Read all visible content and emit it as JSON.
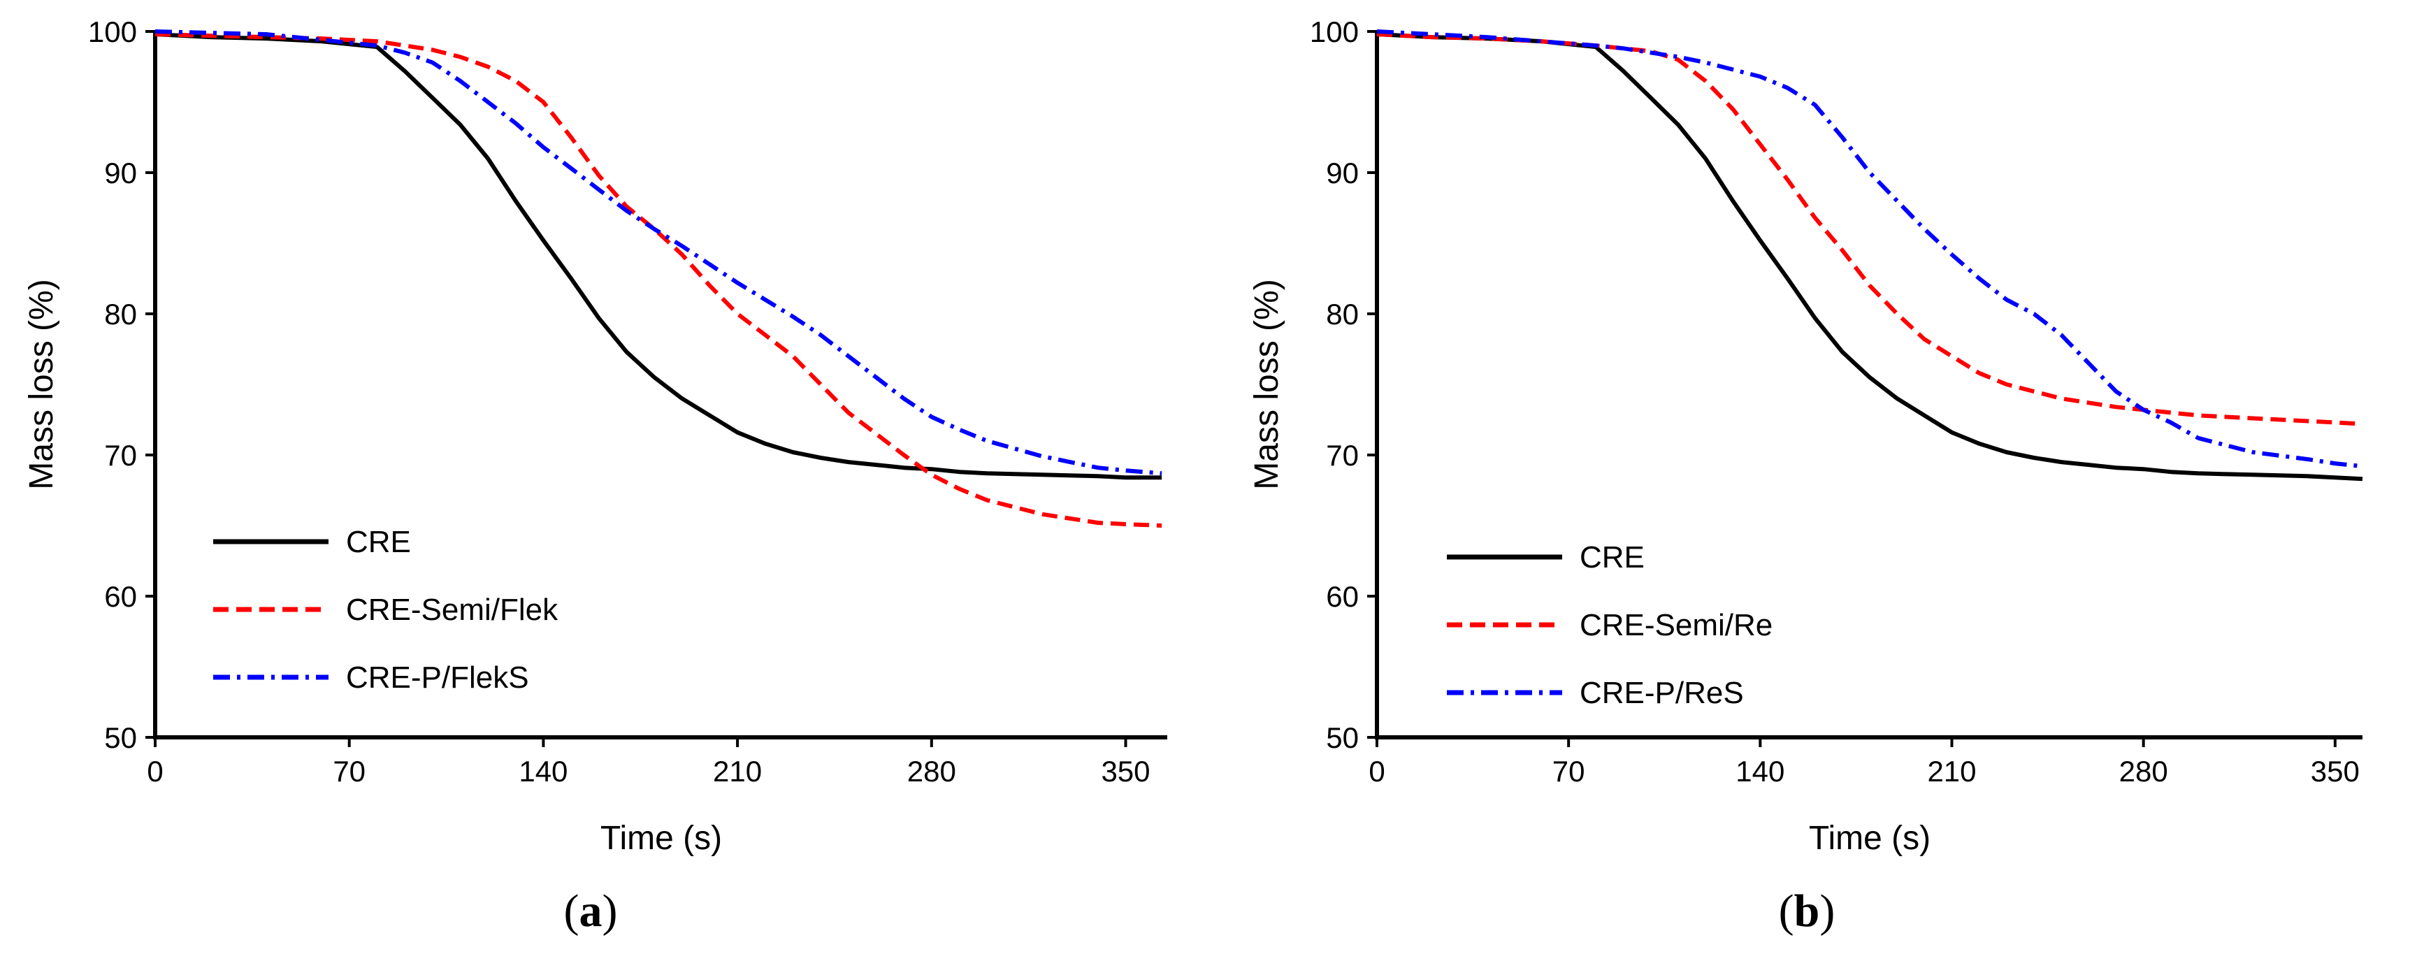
{
  "chart_data": [
    {
      "type": "line",
      "panel_label": "a",
      "xlabel": "Time (s)",
      "ylabel": "Mass loss (%)",
      "xlim": [
        0,
        365
      ],
      "ylim": [
        50,
        100
      ],
      "xticks": [
        0,
        70,
        140,
        210,
        280,
        350
      ],
      "yticks": [
        50,
        60,
        70,
        80,
        90,
        100
      ],
      "grid": false,
      "legend_position": "bottom-left",
      "series": [
        {
          "name": "CRE",
          "color": "#000000",
          "style": "solid",
          "x": [
            0,
            20,
            40,
            60,
            80,
            90,
            100,
            110,
            120,
            130,
            140,
            150,
            160,
            170,
            180,
            190,
            200,
            210,
            220,
            230,
            240,
            250,
            260,
            270,
            280,
            290,
            300,
            320,
            340,
            350,
            363
          ],
          "y": [
            99.8,
            99.6,
            99.5,
            99.3,
            98.9,
            97.2,
            95.3,
            93.4,
            91.0,
            88.0,
            85.2,
            82.5,
            79.7,
            77.3,
            75.5,
            74.0,
            72.8,
            71.6,
            70.8,
            70.2,
            69.8,
            69.5,
            69.3,
            69.1,
            69.0,
            68.8,
            68.7,
            68.6,
            68.5,
            68.4,
            68.4
          ]
        },
        {
          "name": "CRE-Semi/Flek",
          "color": "#ff0000",
          "style": "dashed",
          "x": [
            0,
            20,
            40,
            60,
            80,
            90,
            100,
            110,
            120,
            130,
            140,
            150,
            160,
            170,
            180,
            190,
            200,
            210,
            220,
            230,
            240,
            250,
            260,
            270,
            280,
            290,
            300,
            320,
            340,
            350,
            363
          ],
          "y": [
            99.8,
            99.7,
            99.6,
            99.5,
            99.3,
            99.0,
            98.7,
            98.2,
            97.5,
            96.5,
            95.0,
            92.5,
            89.8,
            87.6,
            86.0,
            84.2,
            82.0,
            80.0,
            78.5,
            77.0,
            75.0,
            73.0,
            71.5,
            70.0,
            68.6,
            67.6,
            66.8,
            65.8,
            65.2,
            65.1,
            65.0
          ]
        },
        {
          "name": "CRE-P/FlekS",
          "color": "#0000ff",
          "style": "dashdot",
          "x": [
            0,
            20,
            40,
            60,
            80,
            90,
            100,
            110,
            120,
            130,
            140,
            150,
            160,
            170,
            180,
            190,
            200,
            210,
            220,
            230,
            240,
            250,
            260,
            270,
            280,
            290,
            300,
            320,
            340,
            350,
            363
          ],
          "y": [
            100.0,
            99.9,
            99.8,
            99.4,
            99.0,
            98.5,
            97.8,
            96.5,
            95.0,
            93.5,
            91.8,
            90.3,
            88.8,
            87.3,
            86.0,
            84.8,
            83.5,
            82.2,
            81.0,
            79.8,
            78.5,
            77.0,
            75.5,
            74.0,
            72.7,
            71.8,
            71.0,
            69.9,
            69.1,
            68.9,
            68.7
          ]
        }
      ]
    },
    {
      "type": "line",
      "panel_label": "b",
      "xlabel": "Time (s)",
      "ylabel": "Mass loss (%)",
      "xlim": [
        0,
        360
      ],
      "ylim": [
        50,
        100
      ],
      "xticks": [
        0,
        70,
        140,
        210,
        280,
        350
      ],
      "yticks": [
        50,
        60,
        70,
        80,
        90,
        100
      ],
      "grid": false,
      "legend_position": "bottom-left",
      "series": [
        {
          "name": "CRE",
          "color": "#000000",
          "style": "solid",
          "x": [
            0,
            20,
            40,
            60,
            80,
            90,
            100,
            110,
            120,
            130,
            140,
            150,
            160,
            170,
            180,
            190,
            200,
            210,
            220,
            230,
            240,
            250,
            260,
            270,
            280,
            290,
            300,
            320,
            340,
            350,
            360
          ],
          "y": [
            99.8,
            99.6,
            99.5,
            99.3,
            98.9,
            97.2,
            95.3,
            93.4,
            91.0,
            88.0,
            85.2,
            82.5,
            79.7,
            77.3,
            75.5,
            74.0,
            72.8,
            71.6,
            70.8,
            70.2,
            69.8,
            69.5,
            69.3,
            69.1,
            69.0,
            68.8,
            68.7,
            68.6,
            68.5,
            68.4,
            68.3
          ]
        },
        {
          "name": "CRE-Semi/Re",
          "color": "#ff0000",
          "style": "dashed",
          "x": [
            0,
            20,
            40,
            60,
            80,
            90,
            100,
            110,
            120,
            130,
            140,
            150,
            160,
            170,
            180,
            190,
            200,
            210,
            220,
            230,
            240,
            250,
            260,
            270,
            280,
            290,
            300,
            320,
            340,
            350,
            360
          ],
          "y": [
            99.8,
            99.6,
            99.5,
            99.3,
            99.0,
            98.8,
            98.6,
            98.0,
            96.5,
            94.5,
            92.0,
            89.5,
            86.8,
            84.5,
            82.0,
            80.0,
            78.2,
            77.0,
            75.8,
            75.0,
            74.5,
            74.0,
            73.7,
            73.4,
            73.2,
            73.0,
            72.8,
            72.6,
            72.4,
            72.3,
            72.2
          ]
        },
        {
          "name": "CRE-P/ReS",
          "color": "#0000ff",
          "style": "dashdot",
          "x": [
            0,
            20,
            40,
            60,
            80,
            90,
            100,
            110,
            120,
            130,
            140,
            150,
            160,
            170,
            180,
            190,
            200,
            210,
            220,
            230,
            240,
            250,
            260,
            270,
            280,
            290,
            300,
            320,
            340,
            350,
            360
          ],
          "y": [
            100.0,
            99.8,
            99.6,
            99.3,
            99.0,
            98.8,
            98.5,
            98.2,
            97.8,
            97.3,
            96.8,
            96.0,
            94.8,
            92.5,
            90.0,
            88.0,
            86.0,
            84.2,
            82.5,
            81.0,
            80.0,
            78.5,
            76.5,
            74.5,
            73.2,
            72.3,
            71.2,
            70.2,
            69.7,
            69.4,
            69.2
          ]
        }
      ]
    }
  ]
}
